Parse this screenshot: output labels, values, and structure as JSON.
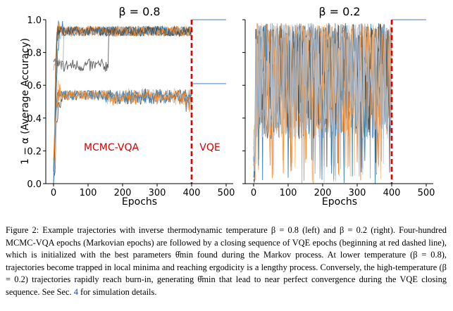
{
  "chart_data": [
    {
      "type": "line",
      "title": "β = 0.8",
      "xlabel": "Epochs",
      "ylabel": "1 − α  (Average Accuracy)",
      "xlim": [
        0,
        500
      ],
      "ylim": [
        0.0,
        1.0
      ],
      "xticks": [
        "0",
        "100",
        "200",
        "300",
        "400",
        "500"
      ],
      "yticks": [
        "0.0",
        "0.2",
        "0.4",
        "0.6",
        "0.8",
        "1.0"
      ],
      "annotations": [
        "MCMC-VQA",
        "VQE"
      ],
      "vline_x": 400,
      "series_colors": [
        "#1f77b4",
        "#ff7f0e",
        "#4a4a4a",
        "#ffbb78",
        "#aec7e8",
        "#a9a9a9"
      ],
      "groups": [
        {
          "plateau": 0.93,
          "count": 9
        },
        {
          "plateau": 0.54,
          "count": 6
        }
      ],
      "vqe_final": [
        1.0,
        0.61
      ]
    },
    {
      "type": "line",
      "title": "β = 0.2",
      "xlabel": "Epochs",
      "xlim": [
        0,
        500
      ],
      "ylim": [
        0.0,
        1.0
      ],
      "xticks": [
        "0",
        "100",
        "200",
        "300",
        "400",
        "500"
      ],
      "vline_x": 400,
      "series_colors": [
        "#1f77b4",
        "#ff7f0e",
        "#4a4a4a",
        "#ffbb78",
        "#aec7e8",
        "#a9a9a9"
      ],
      "vqe_final": [
        1.0
      ]
    }
  ],
  "caption": {
    "part1": "Figure 2: Example trajectories with inverse thermodynamic temperature β = 0.8 (left) and β = 0.2 (right). Four-hundred MCMC-VQA epochs (Markovian epochs) are followed by a closing sequence of VQE epochs (beginning at red dashed line), which is initialized with the best parameters θ̂min found during the Markov process. At lower temperature (β = 0.8), trajectories become trapped in local minima and reaching ergodicity is a lengthy process. Conversely, the high-temperature (β = 0.2) trajectories rapidly reach burn-in, generating θ̂min that lead to near perfect convergence during the VQE closing sequence. See Sec. ",
    "ref": "4",
    "part2": " for simulation details."
  }
}
